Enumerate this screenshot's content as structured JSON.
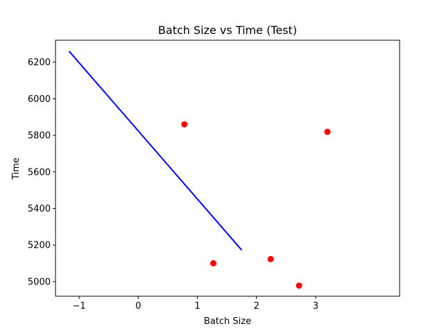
{
  "chart_data": {
    "type": "scatter",
    "title": "Batch Size vs Time (Test)",
    "xlabel": "Batch Size",
    "ylabel": "Time",
    "xlim": [
      -1.4,
      4.42
    ],
    "ylim": [
      4920,
      6320
    ],
    "x_ticks": [
      -1,
      0,
      1,
      2,
      3
    ],
    "x_tick_labels": [
      "−1",
      "0",
      "1",
      "2",
      "3"
    ],
    "y_ticks": [
      5000,
      5200,
      5400,
      5600,
      5800,
      6000,
      6200
    ],
    "y_tick_labels": [
      "5000",
      "5200",
      "5400",
      "5600",
      "5800",
      "6000",
      "6200"
    ],
    "grid": false,
    "series": [
      {
        "kind": "scatter",
        "color": "#ff0000",
        "points": [
          {
            "x": 0.78,
            "y": 5860
          },
          {
            "x": 1.27,
            "y": 5100
          },
          {
            "x": 2.24,
            "y": 5123
          },
          {
            "x": 2.72,
            "y": 4978
          },
          {
            "x": 3.2,
            "y": 5819
          }
        ]
      },
      {
        "kind": "line",
        "color": "#0000ff",
        "points": [
          {
            "x": -1.17,
            "y": 6260
          },
          {
            "x": 1.75,
            "y": 5172
          }
        ]
      }
    ]
  }
}
